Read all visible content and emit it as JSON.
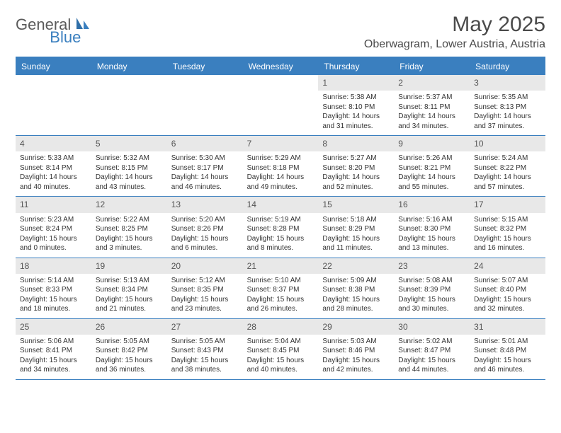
{
  "logo": {
    "part1": "General",
    "part2": "Blue"
  },
  "title": "May 2025",
  "location": "Oberwagram, Lower Austria, Austria",
  "colors": {
    "accent": "#3a7fbf",
    "header_text": "#ffffff",
    "daynum_bg": "#e8e8e8",
    "text": "#333333",
    "logo_gray": "#5a5a5a"
  },
  "day_names": [
    "Sunday",
    "Monday",
    "Tuesday",
    "Wednesday",
    "Thursday",
    "Friday",
    "Saturday"
  ],
  "leading_blanks": 4,
  "days": [
    {
      "n": "1",
      "sr": "5:38 AM",
      "ss": "8:10 PM",
      "dl1": "14 hours",
      "dl2": "and 31 minutes."
    },
    {
      "n": "2",
      "sr": "5:37 AM",
      "ss": "8:11 PM",
      "dl1": "14 hours",
      "dl2": "and 34 minutes."
    },
    {
      "n": "3",
      "sr": "5:35 AM",
      "ss": "8:13 PM",
      "dl1": "14 hours",
      "dl2": "and 37 minutes."
    },
    {
      "n": "4",
      "sr": "5:33 AM",
      "ss": "8:14 PM",
      "dl1": "14 hours",
      "dl2": "and 40 minutes."
    },
    {
      "n": "5",
      "sr": "5:32 AM",
      "ss": "8:15 PM",
      "dl1": "14 hours",
      "dl2": "and 43 minutes."
    },
    {
      "n": "6",
      "sr": "5:30 AM",
      "ss": "8:17 PM",
      "dl1": "14 hours",
      "dl2": "and 46 minutes."
    },
    {
      "n": "7",
      "sr": "5:29 AM",
      "ss": "8:18 PM",
      "dl1": "14 hours",
      "dl2": "and 49 minutes."
    },
    {
      "n": "8",
      "sr": "5:27 AM",
      "ss": "8:20 PM",
      "dl1": "14 hours",
      "dl2": "and 52 minutes."
    },
    {
      "n": "9",
      "sr": "5:26 AM",
      "ss": "8:21 PM",
      "dl1": "14 hours",
      "dl2": "and 55 minutes."
    },
    {
      "n": "10",
      "sr": "5:24 AM",
      "ss": "8:22 PM",
      "dl1": "14 hours",
      "dl2": "and 57 minutes."
    },
    {
      "n": "11",
      "sr": "5:23 AM",
      "ss": "8:24 PM",
      "dl1": "15 hours",
      "dl2": "and 0 minutes."
    },
    {
      "n": "12",
      "sr": "5:22 AM",
      "ss": "8:25 PM",
      "dl1": "15 hours",
      "dl2": "and 3 minutes."
    },
    {
      "n": "13",
      "sr": "5:20 AM",
      "ss": "8:26 PM",
      "dl1": "15 hours",
      "dl2": "and 6 minutes."
    },
    {
      "n": "14",
      "sr": "5:19 AM",
      "ss": "8:28 PM",
      "dl1": "15 hours",
      "dl2": "and 8 minutes."
    },
    {
      "n": "15",
      "sr": "5:18 AM",
      "ss": "8:29 PM",
      "dl1": "15 hours",
      "dl2": "and 11 minutes."
    },
    {
      "n": "16",
      "sr": "5:16 AM",
      "ss": "8:30 PM",
      "dl1": "15 hours",
      "dl2": "and 13 minutes."
    },
    {
      "n": "17",
      "sr": "5:15 AM",
      "ss": "8:32 PM",
      "dl1": "15 hours",
      "dl2": "and 16 minutes."
    },
    {
      "n": "18",
      "sr": "5:14 AM",
      "ss": "8:33 PM",
      "dl1": "15 hours",
      "dl2": "and 18 minutes."
    },
    {
      "n": "19",
      "sr": "5:13 AM",
      "ss": "8:34 PM",
      "dl1": "15 hours",
      "dl2": "and 21 minutes."
    },
    {
      "n": "20",
      "sr": "5:12 AM",
      "ss": "8:35 PM",
      "dl1": "15 hours",
      "dl2": "and 23 minutes."
    },
    {
      "n": "21",
      "sr": "5:10 AM",
      "ss": "8:37 PM",
      "dl1": "15 hours",
      "dl2": "and 26 minutes."
    },
    {
      "n": "22",
      "sr": "5:09 AM",
      "ss": "8:38 PM",
      "dl1": "15 hours",
      "dl2": "and 28 minutes."
    },
    {
      "n": "23",
      "sr": "5:08 AM",
      "ss": "8:39 PM",
      "dl1": "15 hours",
      "dl2": "and 30 minutes."
    },
    {
      "n": "24",
      "sr": "5:07 AM",
      "ss": "8:40 PM",
      "dl1": "15 hours",
      "dl2": "and 32 minutes."
    },
    {
      "n": "25",
      "sr": "5:06 AM",
      "ss": "8:41 PM",
      "dl1": "15 hours",
      "dl2": "and 34 minutes."
    },
    {
      "n": "26",
      "sr": "5:05 AM",
      "ss": "8:42 PM",
      "dl1": "15 hours",
      "dl2": "and 36 minutes."
    },
    {
      "n": "27",
      "sr": "5:05 AM",
      "ss": "8:43 PM",
      "dl1": "15 hours",
      "dl2": "and 38 minutes."
    },
    {
      "n": "28",
      "sr": "5:04 AM",
      "ss": "8:45 PM",
      "dl1": "15 hours",
      "dl2": "and 40 minutes."
    },
    {
      "n": "29",
      "sr": "5:03 AM",
      "ss": "8:46 PM",
      "dl1": "15 hours",
      "dl2": "and 42 minutes."
    },
    {
      "n": "30",
      "sr": "5:02 AM",
      "ss": "8:47 PM",
      "dl1": "15 hours",
      "dl2": "and 44 minutes."
    },
    {
      "n": "31",
      "sr": "5:01 AM",
      "ss": "8:48 PM",
      "dl1": "15 hours",
      "dl2": "and 46 minutes."
    }
  ],
  "labels": {
    "sunrise": "Sunrise:",
    "sunset": "Sunset:",
    "daylight": "Daylight:"
  }
}
